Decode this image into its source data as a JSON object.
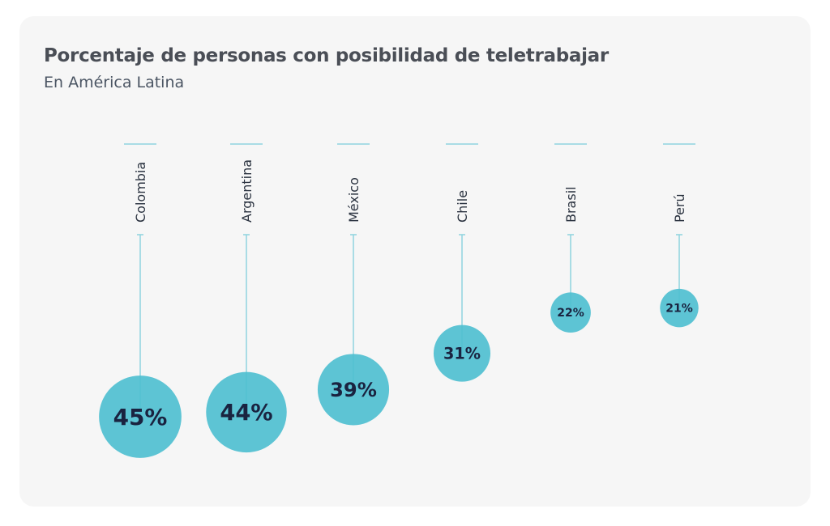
{
  "chart_data": {
    "type": "bubble",
    "title": "Porcentaje de personas con posibilidad de teletrabajar",
    "subtitle": "En América Latina",
    "categories": [
      "Colombia",
      "Argentina",
      "México",
      "Chile",
      "Brasil",
      "Perú"
    ],
    "values": [
      45,
      44,
      39,
      31,
      22,
      21
    ],
    "labels": [
      "45%",
      "44%",
      "39%",
      "31%",
      "22%",
      "21%"
    ],
    "colors": {
      "bubble": "#4fbfd0",
      "line": "#8fd3df",
      "text": "#1a2340",
      "label": "#2b3340"
    }
  }
}
